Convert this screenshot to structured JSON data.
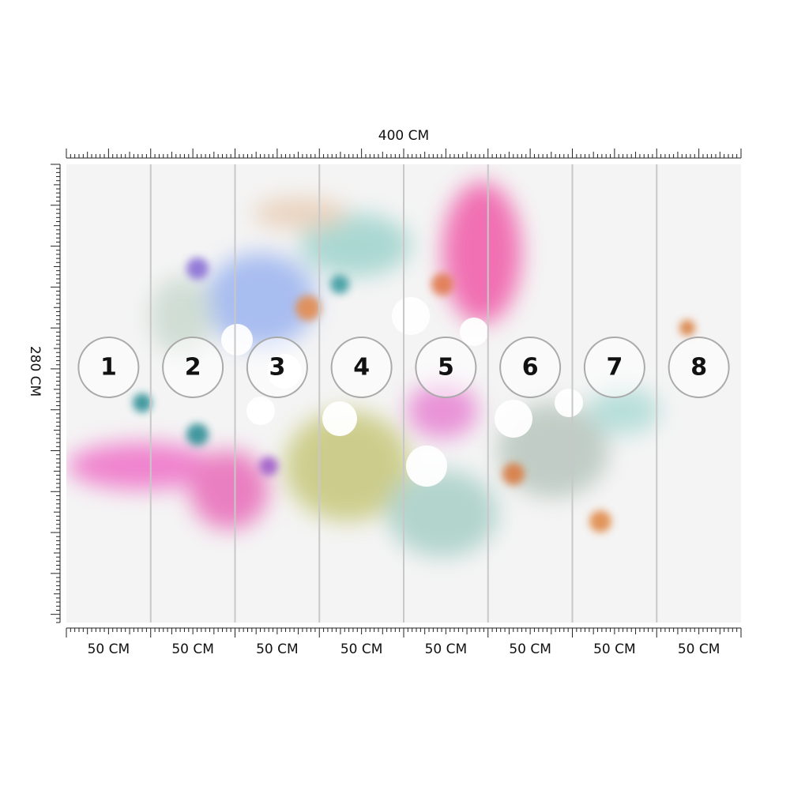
{
  "width_label": "400 CM",
  "height_label": "280 CM",
  "panels": [
    {
      "number": "1",
      "width": "50 CM"
    },
    {
      "number": "2",
      "width": "50 CM"
    },
    {
      "number": "3",
      "width": "50 CM"
    },
    {
      "number": "4",
      "width": "50 CM"
    },
    {
      "number": "5",
      "width": "50 CM"
    },
    {
      "number": "6",
      "width": "50 CM"
    },
    {
      "number": "7",
      "width": "50 CM"
    },
    {
      "number": "8",
      "width": "50 CM"
    }
  ]
}
